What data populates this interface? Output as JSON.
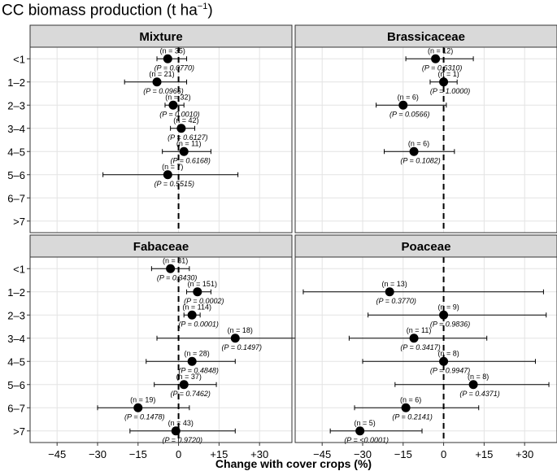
{
  "figure": {
    "title_main": "CC biomass production (t ha",
    "title_sup": "−1",
    "title_close": ")",
    "xlabel": "Change with cover crops (%)"
  },
  "chart_data": {
    "type": "forest",
    "title": "CC biomass production (t ha−1)",
    "xlabel": "Change with cover crops (%)",
    "ylabel": "",
    "xlim": [
      -55,
      42
    ],
    "xticks": [
      -45,
      -30,
      -15,
      0,
      15,
      30
    ],
    "xtick_labels": [
      "−45",
      "−30",
      "−15",
      "0",
      "+15",
      "+30"
    ],
    "categories": [
      "<1",
      "1–2",
      "2–3",
      "3–4",
      "4–5",
      "5–6",
      "6–7",
      ">7"
    ],
    "grid": true,
    "reference_line": 0,
    "panels": [
      {
        "name": "Mixture",
        "points": [
          {
            "category": "<1",
            "est": -4,
            "lo": -8,
            "hi": 3,
            "n": "(n = 35)",
            "p": "(P = 0.0770)"
          },
          {
            "category": "1–2",
            "est": -8,
            "lo": -20,
            "hi": 3,
            "n": "(n = 21)",
            "p": "(P = 0.0966)"
          },
          {
            "category": "2–3",
            "est": -2,
            "lo": -5,
            "hi": 2,
            "n": "(n = 32)",
            "p": "(P = 0.0010)"
          },
          {
            "category": "3–4",
            "est": 1,
            "lo": -3,
            "hi": 6,
            "n": "(n = 42)",
            "p": "(P = 0.6127)"
          },
          {
            "category": "4–5",
            "est": 2,
            "lo": -6,
            "hi": 12,
            "n": "(n = 11)",
            "p": "(P = 0.6168)"
          },
          {
            "category": "5–6",
            "est": -4,
            "lo": -28,
            "hi": 22,
            "n": "(n = 7)",
            "p": "(P = 0.5515)"
          }
        ]
      },
      {
        "name": "Brassicaceae",
        "points": [
          {
            "category": "<1",
            "est": -3,
            "lo": -14,
            "hi": 11,
            "n": "(n = 12)",
            "p": "(P = 0.6310)"
          },
          {
            "category": "1–2",
            "est": 0,
            "lo": -5,
            "hi": 5,
            "n": "(n = 1)",
            "p": "(P = 1.0000)"
          },
          {
            "category": "2–3",
            "est": -15,
            "lo": -25,
            "hi": 1,
            "n": "(n = 6)",
            "p": "(P = 0.0566)"
          },
          {
            "category": "4–5",
            "est": -11,
            "lo": -22,
            "hi": 4,
            "n": "(n = 6)",
            "p": "(P = 0.1082)"
          }
        ]
      },
      {
        "name": "Fabaceae",
        "points": [
          {
            "category": "<1",
            "est": -3,
            "lo": -10,
            "hi": 4,
            "n": "(n = 81)",
            "p": "(P = 0.3430)"
          },
          {
            "category": "1–2",
            "est": 7,
            "lo": 3,
            "hi": 12,
            "n": "(n = 151)",
            "p": "(P = 0.0002)"
          },
          {
            "category": "2–3",
            "est": 5,
            "lo": 2,
            "hi": 8,
            "n": "(n = 114)",
            "p": "(P = 0.0001)"
          },
          {
            "category": "3–4",
            "est": 21,
            "lo": -8,
            "hi": 46,
            "n": "(n = 18)",
            "p": "(P = 0.1497)"
          },
          {
            "category": "4–5",
            "est": 5,
            "lo": -12,
            "hi": 21,
            "n": "(n = 28)",
            "p": "(P = 0.4848)"
          },
          {
            "category": "5–6",
            "est": 2,
            "lo": -9,
            "hi": 14,
            "n": "(n = 37)",
            "p": "(P = 0.7462)"
          },
          {
            "category": "6–7",
            "est": -15,
            "lo": -30,
            "hi": 4,
            "n": "(n = 19)",
            "p": "(P = 0.1478)"
          },
          {
            "category": ">7",
            "est": -1,
            "lo": -18,
            "hi": 21,
            "n": "(n = 43)",
            "p": "(P = 0.9720)"
          }
        ]
      },
      {
        "name": "Poaceae",
        "points": [
          {
            "category": "1–2",
            "est": -20,
            "lo": -52,
            "hi": 37,
            "n": "(n = 13)",
            "p": "(P = 0.3770)"
          },
          {
            "category": "2–3",
            "est": 0,
            "lo": -28,
            "hi": 38,
            "n": "(n = 9)",
            "p": "(P = 0.9836)"
          },
          {
            "category": "3–4",
            "est": -11,
            "lo": -35,
            "hi": 16,
            "n": "(n = 11)",
            "p": "(P = 0.3417)"
          },
          {
            "category": "4–5",
            "est": 0,
            "lo": -30,
            "hi": 34,
            "n": "(n = 8)",
            "p": "(P = 0.9947)"
          },
          {
            "category": "5–6",
            "est": 11,
            "lo": -18,
            "hi": 39,
            "n": "(n = 8)",
            "p": "(P = 0.4371)"
          },
          {
            "category": "6–7",
            "est": -14,
            "lo": -33,
            "hi": 13,
            "n": "(n = 6)",
            "p": "(P = 0.2141)"
          },
          {
            "category": ">7",
            "est": -31,
            "lo": -42,
            "hi": -8,
            "n": "(n = 5)",
            "p": "(P = <0.0001)"
          }
        ]
      }
    ]
  }
}
